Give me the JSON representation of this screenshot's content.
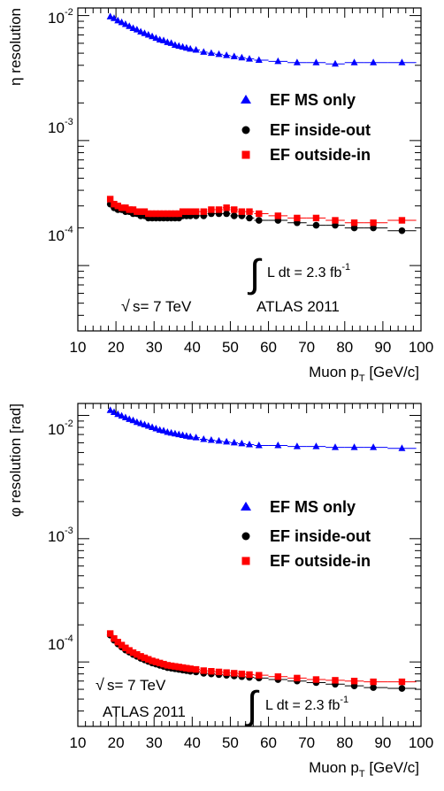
{
  "chart_data": [
    {
      "type": "scatter",
      "title": "",
      "ylabel": "η resolution",
      "xlabel_main": "Muon p",
      "xlabel_sub": "T",
      "xlabel_unit": "[GeV/c]",
      "xlim": [
        10,
        100
      ],
      "ylim": [
        3e-05,
        0.0115
      ],
      "log_y": true,
      "grid": false,
      "legend_position": "right",
      "x_ticks": [
        10,
        20,
        30,
        40,
        50,
        60,
        70,
        80,
        90,
        100
      ],
      "y_tick_labels": [
        {
          "base": "10",
          "exp": "-2",
          "value": 0.01
        },
        {
          "base": "10",
          "exp": "-3",
          "value": 0.001
        },
        {
          "base": "10",
          "exp": "-4",
          "value": 0.0001
        }
      ],
      "annotations": {
        "sqrt_s_symbol": "√",
        "sqrt_s_text": "s= 7 TeV",
        "experiment": "ATLAS 2011",
        "integral_symbol": "∫",
        "lumi_text": "L dt = 2.3 fb",
        "lumi_exp": "-1"
      },
      "series": [
        {
          "name": "EF MS only",
          "marker": "triangle",
          "color": "#0000ff",
          "x": [
            18.5,
            19.5,
            20.5,
            21.5,
            22.5,
            23.5,
            24.5,
            25.5,
            26.5,
            27.5,
            28.5,
            29.5,
            30.5,
            31.5,
            32.5,
            33.5,
            34.5,
            35.5,
            36.5,
            37.5,
            38.5,
            39.5,
            41,
            43,
            45,
            47,
            49,
            51,
            53,
            55,
            57.5,
            62.5,
            67.5,
            72.5,
            77.5,
            82.5,
            87.5,
            95
          ],
          "y": [
            0.0098,
            0.0095,
            0.0091,
            0.0088,
            0.0085,
            0.0082,
            0.0079,
            0.0077,
            0.0074,
            0.0072,
            0.007,
            0.0068,
            0.0066,
            0.0064,
            0.0063,
            0.0061,
            0.006,
            0.0058,
            0.0057,
            0.0056,
            0.0055,
            0.0054,
            0.0053,
            0.0051,
            0.005,
            0.0049,
            0.0048,
            0.0047,
            0.0046,
            0.0045,
            0.0044,
            0.0043,
            0.0042,
            0.0042,
            0.0041,
            0.0042,
            0.0042,
            0.0042
          ]
        },
        {
          "name": "EF inside-out",
          "marker": "circle",
          "color": "#000000",
          "x": [
            18.5,
            19.5,
            20.5,
            21.5,
            22.5,
            23.5,
            24.5,
            25.5,
            26.5,
            27.5,
            28.5,
            29.5,
            30.5,
            31.5,
            32.5,
            33.5,
            34.5,
            35.5,
            36.5,
            37.5,
            38.5,
            39.5,
            41,
            43,
            45,
            47,
            49,
            51,
            53,
            55,
            57.5,
            62.5,
            67.5,
            72.5,
            77.5,
            82.5,
            87.5,
            95
          ],
          "y": [
            0.00031,
            0.00029,
            0.00028,
            0.00028,
            0.00027,
            0.00027,
            0.00026,
            0.00026,
            0.00025,
            0.00025,
            0.00024,
            0.00024,
            0.00024,
            0.00024,
            0.00024,
            0.00024,
            0.00024,
            0.00024,
            0.00024,
            0.00025,
            0.00025,
            0.00025,
            0.00025,
            0.00025,
            0.00026,
            0.00026,
            0.00026,
            0.00025,
            0.00025,
            0.00024,
            0.00023,
            0.00023,
            0.00022,
            0.00021,
            0.00021,
            0.0002,
            0.0002,
            0.00019
          ]
        },
        {
          "name": "EF outside-in",
          "marker": "square",
          "color": "#ff0000",
          "x": [
            18.5,
            19.5,
            20.5,
            21.5,
            22.5,
            23.5,
            24.5,
            25.5,
            26.5,
            27.5,
            28.5,
            29.5,
            30.5,
            31.5,
            32.5,
            33.5,
            34.5,
            35.5,
            36.5,
            37.5,
            38.5,
            39.5,
            41,
            43,
            45,
            47,
            49,
            51,
            53,
            55,
            57.5,
            62.5,
            67.5,
            72.5,
            77.5,
            82.5,
            87.5,
            95
          ],
          "y": [
            0.00034,
            0.00031,
            0.0003,
            0.00029,
            0.00029,
            0.00028,
            0.00028,
            0.00027,
            0.00027,
            0.00027,
            0.00026,
            0.00026,
            0.00026,
            0.00026,
            0.00026,
            0.00026,
            0.00026,
            0.00026,
            0.00026,
            0.00027,
            0.00027,
            0.00027,
            0.00027,
            0.00027,
            0.00028,
            0.00028,
            0.00029,
            0.00028,
            0.00027,
            0.00027,
            0.00026,
            0.00025,
            0.00024,
            0.00024,
            0.00023,
            0.00022,
            0.00022,
            0.00023
          ]
        }
      ]
    },
    {
      "type": "scatter",
      "title": "",
      "ylabel": "φ resolution [rad]",
      "xlabel_main": "Muon p",
      "xlabel_sub": "T",
      "xlabel_unit": "[GeV/c]",
      "xlim": [
        10,
        100
      ],
      "ylim": [
        3e-05,
        0.0125
      ],
      "log_y": true,
      "grid": false,
      "legend_position": "right",
      "x_ticks": [
        10,
        20,
        30,
        40,
        50,
        60,
        70,
        80,
        90,
        100
      ],
      "y_tick_labels": [
        {
          "base": "10",
          "exp": "-2",
          "value": 0.01
        },
        {
          "base": "10",
          "exp": "-3",
          "value": 0.001
        },
        {
          "base": "10",
          "exp": "-4",
          "value": 0.0001
        }
      ],
      "annotations": {
        "sqrt_s_symbol": "√",
        "sqrt_s_text": "s= 7 TeV",
        "experiment": "ATLAS 2011",
        "integral_symbol": "∫",
        "lumi_text": "L dt = 2.3 fb",
        "lumi_exp": "-1"
      },
      "series": [
        {
          "name": "EF MS only",
          "marker": "triangle",
          "color": "#0000ff",
          "x": [
            18.5,
            19.5,
            20.5,
            21.5,
            22.5,
            23.5,
            24.5,
            25.5,
            26.5,
            27.5,
            28.5,
            29.5,
            30.5,
            31.5,
            32.5,
            33.5,
            34.5,
            35.5,
            36.5,
            37.5,
            38.5,
            39.5,
            41,
            43,
            45,
            47,
            49,
            51,
            53,
            55,
            57.5,
            62.5,
            67.5,
            72.5,
            77.5,
            82.5,
            87.5,
            95
          ],
          "y": [
            0.011,
            0.0106,
            0.0102,
            0.0099,
            0.0096,
            0.0093,
            0.0091,
            0.0088,
            0.0086,
            0.0084,
            0.0082,
            0.008,
            0.0078,
            0.0076,
            0.0075,
            0.0073,
            0.0072,
            0.0071,
            0.007,
            0.0069,
            0.0068,
            0.0067,
            0.0066,
            0.0064,
            0.0063,
            0.0062,
            0.0061,
            0.006,
            0.0059,
            0.0058,
            0.0057,
            0.0057,
            0.0056,
            0.0056,
            0.0055,
            0.0055,
            0.0055,
            0.0054
          ]
        },
        {
          "name": "EF inside-out",
          "marker": "circle",
          "color": "#000000",
          "x": [
            18.5,
            19.5,
            20.5,
            21.5,
            22.5,
            23.5,
            24.5,
            25.5,
            26.5,
            27.5,
            28.5,
            29.5,
            30.5,
            31.5,
            32.5,
            33.5,
            34.5,
            35.5,
            36.5,
            37.5,
            38.5,
            39.5,
            41,
            43,
            45,
            47,
            49,
            51,
            53,
            55,
            57.5,
            62.5,
            67.5,
            72.5,
            77.5,
            82.5,
            87.5,
            95
          ],
          "y": [
            0.000165,
            0.00015,
            0.00014,
            0.000132,
            0.000125,
            0.00012,
            0.000115,
            0.000111,
            0.000107,
            0.000104,
            0.000101,
            9.8e-05,
            9.6e-05,
            9.4e-05,
            9.2e-05,
            9e-05,
            8.9e-05,
            8.8e-05,
            8.7e-05,
            8.6e-05,
            8.5e-05,
            8.4e-05,
            8.3e-05,
            8.1e-05,
            8e-05,
            7.9e-05,
            7.8e-05,
            7.7e-05,
            7.6e-05,
            7.5e-05,
            7.4e-05,
            7.2e-05,
            7e-05,
            6.8e-05,
            6.6e-05,
            6.4e-05,
            6.2e-05,
            6.1e-05
          ]
        },
        {
          "name": "EF outside-in",
          "marker": "square",
          "color": "#ff0000",
          "x": [
            18.5,
            19.5,
            20.5,
            21.5,
            22.5,
            23.5,
            24.5,
            25.5,
            26.5,
            27.5,
            28.5,
            29.5,
            30.5,
            31.5,
            32.5,
            33.5,
            34.5,
            35.5,
            36.5,
            37.5,
            38.5,
            39.5,
            41,
            43,
            45,
            47,
            49,
            51,
            53,
            55,
            57.5,
            62.5,
            67.5,
            72.5,
            77.5,
            82.5,
            87.5,
            95
          ],
          "y": [
            0.00017,
            0.000155,
            0.000145,
            0.000137,
            0.00013,
            0.000124,
            0.000119,
            0.000115,
            0.000111,
            0.000108,
            0.000105,
            0.000102,
            0.0001,
            9.8e-05,
            9.6e-05,
            9.4e-05,
            9.3e-05,
            9.2e-05,
            9.1e-05,
            9e-05,
            8.9e-05,
            8.8e-05,
            8.7e-05,
            8.5e-05,
            8.4e-05,
            8.3e-05,
            8.2e-05,
            8.1e-05,
            8e-05,
            7.9e-05,
            7.8e-05,
            7.6e-05,
            7.4e-05,
            7.2e-05,
            7.1e-05,
            7e-05,
            6.9e-05,
            6.9e-05
          ]
        }
      ]
    }
  ]
}
